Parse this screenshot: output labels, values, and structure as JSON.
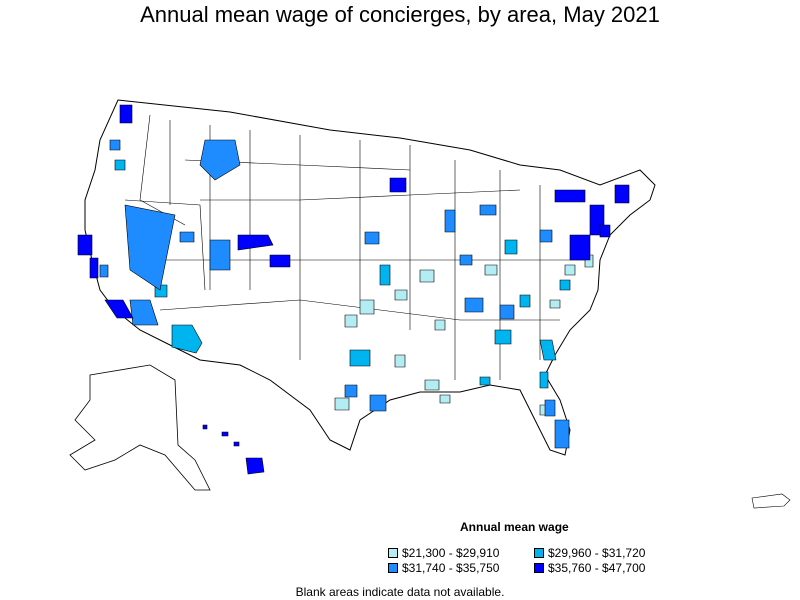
{
  "title": "Annual mean wage of concierges, by area, May 2021",
  "legend": {
    "title": "Annual mean wage",
    "items": [
      {
        "label": "$21,300 - $29,910",
        "color": "#b3ecf2"
      },
      {
        "label": "$29,960 - $31,720",
        "color": "#00b4f0"
      },
      {
        "label": "$31,740 - $35,750",
        "color": "#1e8cff"
      },
      {
        "label": "$35,760 - $47,700",
        "color": "#0000ff"
      }
    ]
  },
  "footnote": "Blank areas indicate data not available.",
  "colors": {
    "outline": "#000000",
    "background": "#ffffff"
  }
}
